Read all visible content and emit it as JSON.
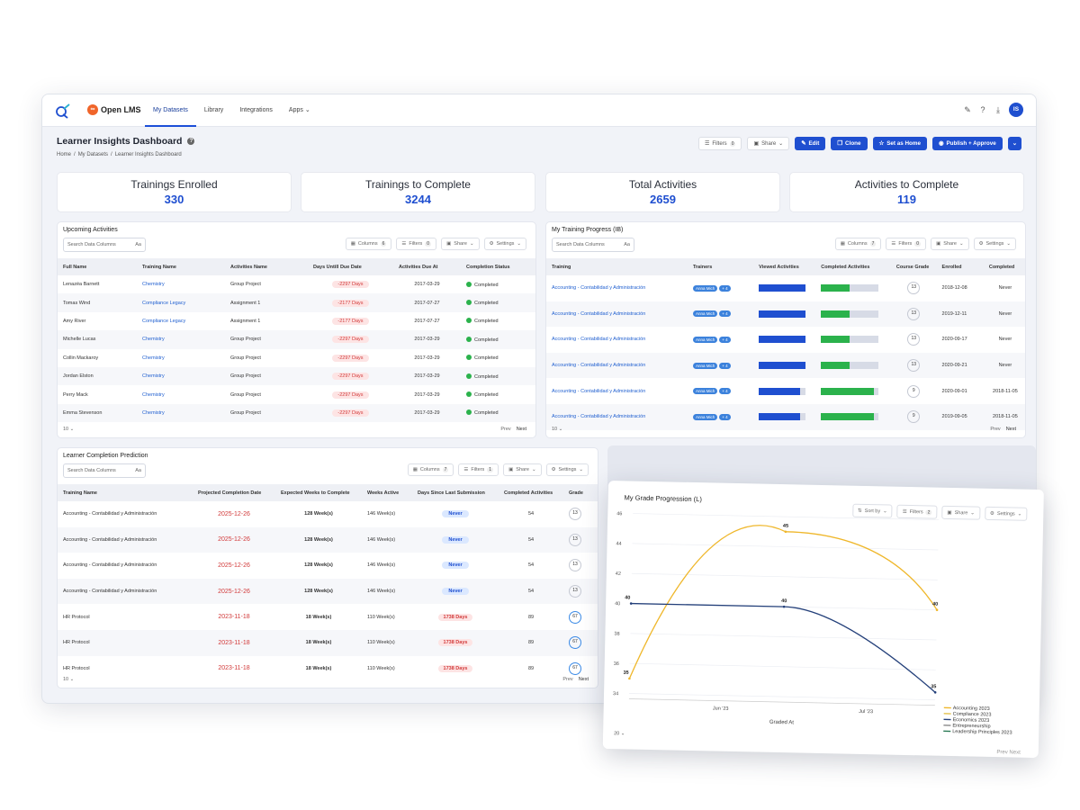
{
  "nav": {
    "brand": "Open LMS",
    "tabs": [
      "My Datasets",
      "Library",
      "Integrations",
      "Apps"
    ],
    "avatar": "IS"
  },
  "page": {
    "title": "Learner Insights Dashboard",
    "crumbs": [
      "Home",
      "/",
      "My Datasets",
      "/",
      "Learner Insights Dashboard"
    ]
  },
  "actions": {
    "filters": "Filters",
    "filters_count": "0",
    "share": "Share",
    "edit": "Edit",
    "clone": "Clone",
    "set_home": "Set as Home",
    "publish": "Publish + Approve"
  },
  "kpis": [
    {
      "label": "Trainings Enrolled",
      "value": "330"
    },
    {
      "label": "Trainings to Complete",
      "value": "3244"
    },
    {
      "label": "Total Activities",
      "value": "2659"
    },
    {
      "label": "Activities to Complete",
      "value": "119"
    }
  ],
  "toolbar": {
    "search_placeholder": "Search Data Columns",
    "aa": "Aa",
    "columns": "Columns",
    "filters": "Filters",
    "share": "Share",
    "settings": "Settings",
    "prev": "Prev",
    "next": "Next"
  },
  "upcoming": {
    "title": "Upcoming Activities",
    "columns_count": "6",
    "filters_count": "0",
    "page_size": "10",
    "headers": [
      "Full Name",
      "Training Name",
      "Activities Name",
      "Days Untill Due Date",
      "Activities Due At",
      "Completion Status"
    ],
    "rows": [
      [
        "Lenazéa Barnett",
        "Chemistry",
        "Group Project",
        "-2297 Days",
        "2017-03-29",
        "Completed"
      ],
      [
        "Tomas Wind",
        "Compliance Legacy",
        "Assignment 1",
        "-2177 Days",
        "2017-07-27",
        "Completed"
      ],
      [
        "Amy River",
        "Compliance Legacy",
        "Assignment 1",
        "-2177 Days",
        "2017-07-27",
        "Completed"
      ],
      [
        "Michelle Lucas",
        "Chemistry",
        "Group Project",
        "-2297 Days",
        "2017-03-29",
        "Completed"
      ],
      [
        "Collin Mackaroy",
        "Chemistry",
        "Group Project",
        "-2297 Days",
        "2017-03-29",
        "Completed"
      ],
      [
        "Jordan Elston",
        "Chemistry",
        "Group Project",
        "-2297 Days",
        "2017-03-29",
        "Completed"
      ],
      [
        "Perry Mack",
        "Chemistry",
        "Group Project",
        "-2297 Days",
        "2017-03-29",
        "Completed"
      ],
      [
        "Emma Stevenson",
        "Chemistry",
        "Group Project",
        "-2297 Days",
        "2017-03-29",
        "Completed"
      ]
    ]
  },
  "progress": {
    "title": "My Training Progress (IB)",
    "columns_count": "7",
    "filters_count": "0",
    "page_size": "10",
    "headers": [
      "Training",
      "Trainers",
      "Viewed Activities",
      "Completed Activities",
      "Course Grade",
      "Enrolled",
      "Completed"
    ],
    "rows": [
      {
        "training": "Accounting - Contabilidad y Administración",
        "trainer": "Anna Mich",
        "more": "+ 4",
        "viewed": 100,
        "completed": 50,
        "grade": "13",
        "enrolled": "2018-12-08",
        "done": "Never"
      },
      {
        "training": "Accounting - Contabilidad y Administración",
        "trainer": "Anna Mich",
        "more": "+ 4",
        "viewed": 100,
        "completed": 50,
        "grade": "13",
        "enrolled": "2019-12-11",
        "done": "Never"
      },
      {
        "training": "Accounting - Contabilidad y Administración",
        "trainer": "Anna Mich",
        "more": "+ 4",
        "viewed": 100,
        "completed": 50,
        "grade": "13",
        "enrolled": "2020-09-17",
        "done": "Never"
      },
      {
        "training": "Accounting - Contabilidad y Administración",
        "trainer": "Anna Mich",
        "more": "+ 4",
        "viewed": 100,
        "completed": 50,
        "grade": "13",
        "enrolled": "2020-09-21",
        "done": "Never"
      },
      {
        "training": "Accounting - Contabilidad y Administración",
        "trainer": "Anna Mich",
        "more": "+ 4",
        "viewed": 88,
        "completed": 92,
        "grade": "9",
        "enrolled": "2020-09-01",
        "done": "2018-11-05"
      },
      {
        "training": "Accounting - Contabilidad y Administración",
        "trainer": "Anna Mich",
        "more": "+ 4",
        "viewed": 88,
        "completed": 92,
        "grade": "9",
        "enrolled": "2019-09-05",
        "done": "2018-11-05"
      }
    ]
  },
  "prediction": {
    "title": "Learner Completion Prediction",
    "columns_count": "7",
    "filters_count": "1",
    "page_size": "10",
    "headers": [
      "Training Name",
      "Projected Completion Date",
      "Expected Weeks to Complete",
      "Weeks Active",
      "Days Since Last Submission",
      "Completed Activities",
      "Grade"
    ],
    "rows": [
      [
        "Accounting - Contabilidad y Administración",
        "2025-12-26",
        "128 Week(s)",
        "146 Week(s)",
        "Never",
        "54",
        "13"
      ],
      [
        "Accounting - Contabilidad y Administración",
        "2025-12-26",
        "128 Week(s)",
        "146 Week(s)",
        "Never",
        "54",
        "13"
      ],
      [
        "Accounting - Contabilidad y Administración",
        "2025-12-26",
        "128 Week(s)",
        "146 Week(s)",
        "Never",
        "54",
        "13"
      ],
      [
        "Accounting - Contabilidad y Administración",
        "2025-12-26",
        "128 Week(s)",
        "146 Week(s)",
        "Never",
        "54",
        "13"
      ],
      [
        "HR Protocol",
        "2023-11-18",
        "18 Week(s)",
        "110 Week(s)",
        "1738 Days",
        "89",
        "67"
      ],
      [
        "HR Protocol",
        "2023-11-18",
        "18 Week(s)",
        "110 Week(s)",
        "1738 Days",
        "89",
        "67"
      ],
      [
        "HR Protocol",
        "2023-11-18",
        "18 Week(s)",
        "110 Week(s)",
        "1738 Days",
        "89",
        "67"
      ]
    ]
  },
  "chart_data": {
    "type": "line",
    "title": "My Grade Progression (L)",
    "xlabel": "Graded At",
    "x_ticks": [
      "Jun '23",
      "Jul '23"
    ],
    "ylim": [
      34,
      46
    ],
    "y_ticks": [
      34,
      36,
      38,
      40,
      42,
      44,
      46
    ],
    "x": [
      0,
      1,
      2
    ],
    "series": [
      {
        "name": "Accounting 2023",
        "color": "#efb72b",
        "values": [
          35,
          45,
          40
        ]
      },
      {
        "name": "Economics 2023",
        "color": "#24407a",
        "values": [
          40,
          40,
          34.5
        ]
      }
    ],
    "data_labels": [
      {
        "text": "35"
      },
      {
        "text": "45"
      },
      {
        "text": "40"
      },
      {
        "text": "40"
      },
      {
        "text": "40"
      },
      {
        "text": "35"
      }
    ],
    "legend": [
      "Accounting 2023",
      "Compliance 2023",
      "Economics 2023",
      "Entrepreneurship",
      "Leadership Principles 2023"
    ],
    "legend_colors": [
      "#efb72b",
      "#e3c04a",
      "#24407a",
      "#888",
      "#2a7a55"
    ],
    "sort_by": "Sort by",
    "filters_count": "2",
    "page_size": "20"
  }
}
